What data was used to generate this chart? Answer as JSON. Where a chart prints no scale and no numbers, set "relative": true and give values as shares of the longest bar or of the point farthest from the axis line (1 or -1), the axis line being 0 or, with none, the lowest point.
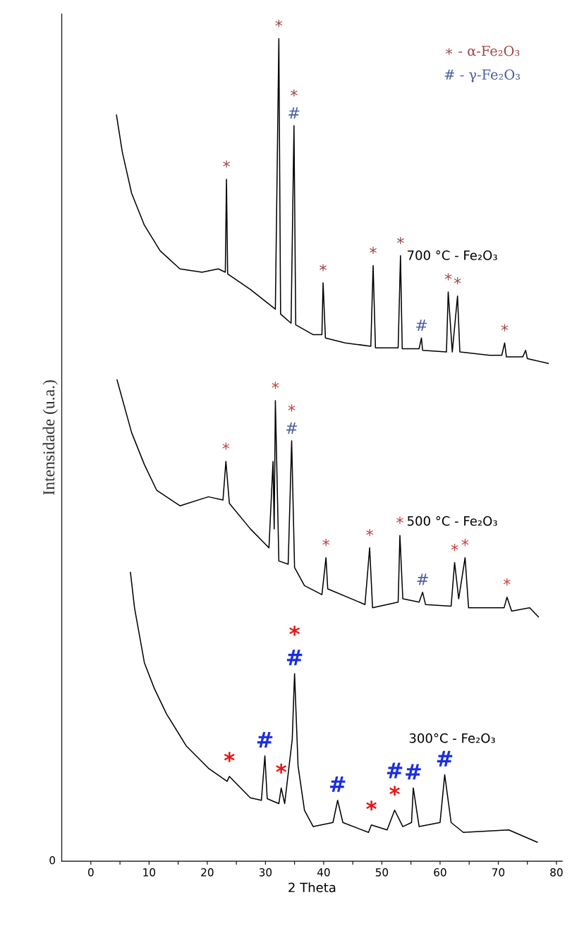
{
  "chart_data": {
    "type": "line",
    "relative": true,
    "xlabel": "2 Theta",
    "ylabel": "Intensidade (u.a.)",
    "xlim": [
      -5,
      81
    ],
    "xticks": [
      0,
      {
        "value": 5,
        "label": null
      },
      10,
      {
        "value": 15,
        "label": null
      },
      20,
      {
        "value": 25,
        "label": null
      },
      30,
      {
        "value": 35,
        "label": null
      },
      40,
      {
        "value": 45,
        "label": null
      },
      50,
      {
        "value": 55,
        "label": null
      },
      60,
      {
        "value": 65,
        "label": null
      },
      70,
      {
        "value": 75,
        "label": null
      },
      80
    ],
    "grid": false,
    "legend": false,
    "series": [
      {
        "name": "700 °C - Fe₂O₃",
        "color": "#000000",
        "x": [
          4.4,
          5.4,
          7.0,
          9.2,
          11.9,
          15.3,
          19.1,
          21.9,
          23.1,
          23.3,
          23.5,
          27.4,
          31.7,
          32.3,
          32.6,
          34.4,
          34.9,
          35.2,
          38.2,
          39.7,
          39.9,
          40.3,
          43.7,
          48.1,
          48.5,
          48.9,
          52.8,
          53.2,
          53.5,
          56.4,
          56.8,
          57.0,
          61.1,
          61.4,
          62.1,
          63.0,
          63.4,
          68.5,
          70.6,
          71.1,
          71.4,
          74.2,
          74.7,
          75.0,
          78.6
        ],
        "values": [
          0.907,
          0.862,
          0.812,
          0.773,
          0.742,
          0.72,
          0.716,
          0.72,
          0.716,
          0.829,
          0.714,
          0.695,
          0.671,
          1.0,
          0.665,
          0.654,
          0.894,
          0.652,
          0.64,
          0.64,
          0.703,
          0.636,
          0.63,
          0.626,
          0.724,
          0.624,
          0.624,
          0.736,
          0.623,
          0.623,
          0.636,
          0.621,
          0.619,
          0.692,
          0.619,
          0.687,
          0.619,
          0.615,
          0.615,
          0.63,
          0.613,
          0.613,
          0.621,
          0.611,
          0.605
        ]
      },
      {
        "name": "500 °C - Fe₂O₃",
        "color": "#000000",
        "x": [
          4.5,
          7.0,
          9.2,
          11.3,
          15.3,
          20.2,
          22.7,
          23.2,
          23.8,
          27.4,
          30.6,
          31.3,
          31.5,
          31.7,
          32.3,
          33.9,
          34.5,
          35.0,
          36.7,
          39.7,
          40.4,
          40.7,
          47.1,
          47.9,
          48.4,
          52.8,
          53.1,
          53.6,
          56.4,
          57.0,
          57.5,
          61.9,
          62.5,
          63.2,
          64.3,
          64.9,
          71.0,
          71.5,
          72.3,
          75.4,
          76.9
        ],
        "values": [
          0.585,
          0.521,
          0.482,
          0.451,
          0.432,
          0.443,
          0.439,
          0.486,
          0.435,
          0.404,
          0.381,
          0.486,
          0.404,
          0.56,
          0.365,
          0.361,
          0.511,
          0.357,
          0.335,
          0.324,
          0.369,
          0.331,
          0.312,
          0.381,
          0.308,
          0.315,
          0.396,
          0.319,
          0.315,
          0.327,
          0.312,
          0.31,
          0.363,
          0.319,
          0.369,
          0.308,
          0.308,
          0.321,
          0.304,
          0.308,
          0.297
        ]
      },
      {
        "name": "300°C - Fe₂O₃",
        "color": "#000000",
        "x": [
          6.8,
          7.5,
          9.2,
          10.9,
          13.0,
          16.4,
          20.2,
          23.4,
          23.8,
          27.4,
          29.3,
          29.9,
          30.3,
          32.3,
          32.7,
          33.3,
          34.6,
          35.0,
          35.6,
          36.7,
          38.2,
          41.6,
          42.4,
          43.3,
          47.7,
          48.2,
          50.9,
          52.2,
          53.6,
          55.1,
          55.4,
          56.4,
          60.0,
          60.8,
          61.9,
          64.0,
          71.8,
          76.7
        ],
        "values": [
          0.351,
          0.308,
          0.241,
          0.21,
          0.179,
          0.14,
          0.113,
          0.097,
          0.103,
          0.077,
          0.074,
          0.128,
          0.076,
          0.07,
          0.089,
          0.07,
          0.148,
          0.228,
          0.116,
          0.062,
          0.042,
          0.047,
          0.074,
          0.047,
          0.035,
          0.044,
          0.038,
          0.062,
          0.042,
          0.047,
          0.089,
          0.042,
          0.047,
          0.105,
          0.047,
          0.035,
          0.038,
          0.023
        ]
      }
    ],
    "annotations": [
      "∗ - α-Fe₂O₃",
      "# - γ-Fe₂O₃",
      "0",
      {
        "text": "*",
        "x": 23.3,
        "y": 0.829
      },
      {
        "text": "*",
        "x": 32.3,
        "y": 1.0
      },
      {
        "text": "#",
        "x": 34.9,
        "y": 0.894
      },
      {
        "text": "*",
        "x": 34.9,
        "y": 0.894
      },
      {
        "text": "*",
        "x": 39.9,
        "y": 0.703
      },
      {
        "text": "*",
        "x": 48.5,
        "y": 0.724
      },
      {
        "text": "*",
        "x": 53.2,
        "y": 0.736
      },
      {
        "text": "#",
        "x": 56.8,
        "y": 0.636
      },
      {
        "text": "*",
        "x": 61.4,
        "y": 0.692
      },
      {
        "text": "*",
        "x": 63.0,
        "y": 0.687
      },
      {
        "text": "*",
        "x": 71.1,
        "y": 0.63
      },
      {
        "text": "*",
        "x": 23.2,
        "y": 0.486
      },
      {
        "text": "*",
        "x": 31.7,
        "y": 0.56
      },
      {
        "text": "#",
        "x": 34.5,
        "y": 0.511
      },
      {
        "text": "*",
        "x": 34.5,
        "y": 0.511
      },
      {
        "text": "*",
        "x": 40.4,
        "y": 0.369
      },
      {
        "text": "*",
        "x": 47.9,
        "y": 0.381
      },
      {
        "text": "*",
        "x": 53.1,
        "y": 0.396
      },
      {
        "text": "#",
        "x": 57.0,
        "y": 0.327
      },
      {
        "text": "*",
        "x": 62.5,
        "y": 0.363
      },
      {
        "text": "*",
        "x": 64.3,
        "y": 0.369
      },
      {
        "text": "*",
        "x": 71.5,
        "y": 0.321
      },
      {
        "text": "*",
        "x": 23.8,
        "y": 0.103
      },
      {
        "text": "#",
        "x": 29.9,
        "y": 0.128
      },
      {
        "text": "*",
        "x": 32.7,
        "y": 0.089
      },
      {
        "text": "#",
        "x": 35.0,
        "y": 0.228
      },
      {
        "text": "*",
        "x": 35.0,
        "y": 0.228
      },
      {
        "text": "#",
        "x": 42.4,
        "y": 0.074
      },
      {
        "text": "*",
        "x": 48.2,
        "y": 0.044
      },
      {
        "text": "*",
        "x": 52.2,
        "y": 0.062
      },
      {
        "text": "#",
        "x": 52.2,
        "y": 0.062
      },
      {
        "text": "#",
        "x": 55.4,
        "y": 0.089
      },
      {
        "text": "#",
        "x": 60.8,
        "y": 0.105
      }
    ]
  }
}
